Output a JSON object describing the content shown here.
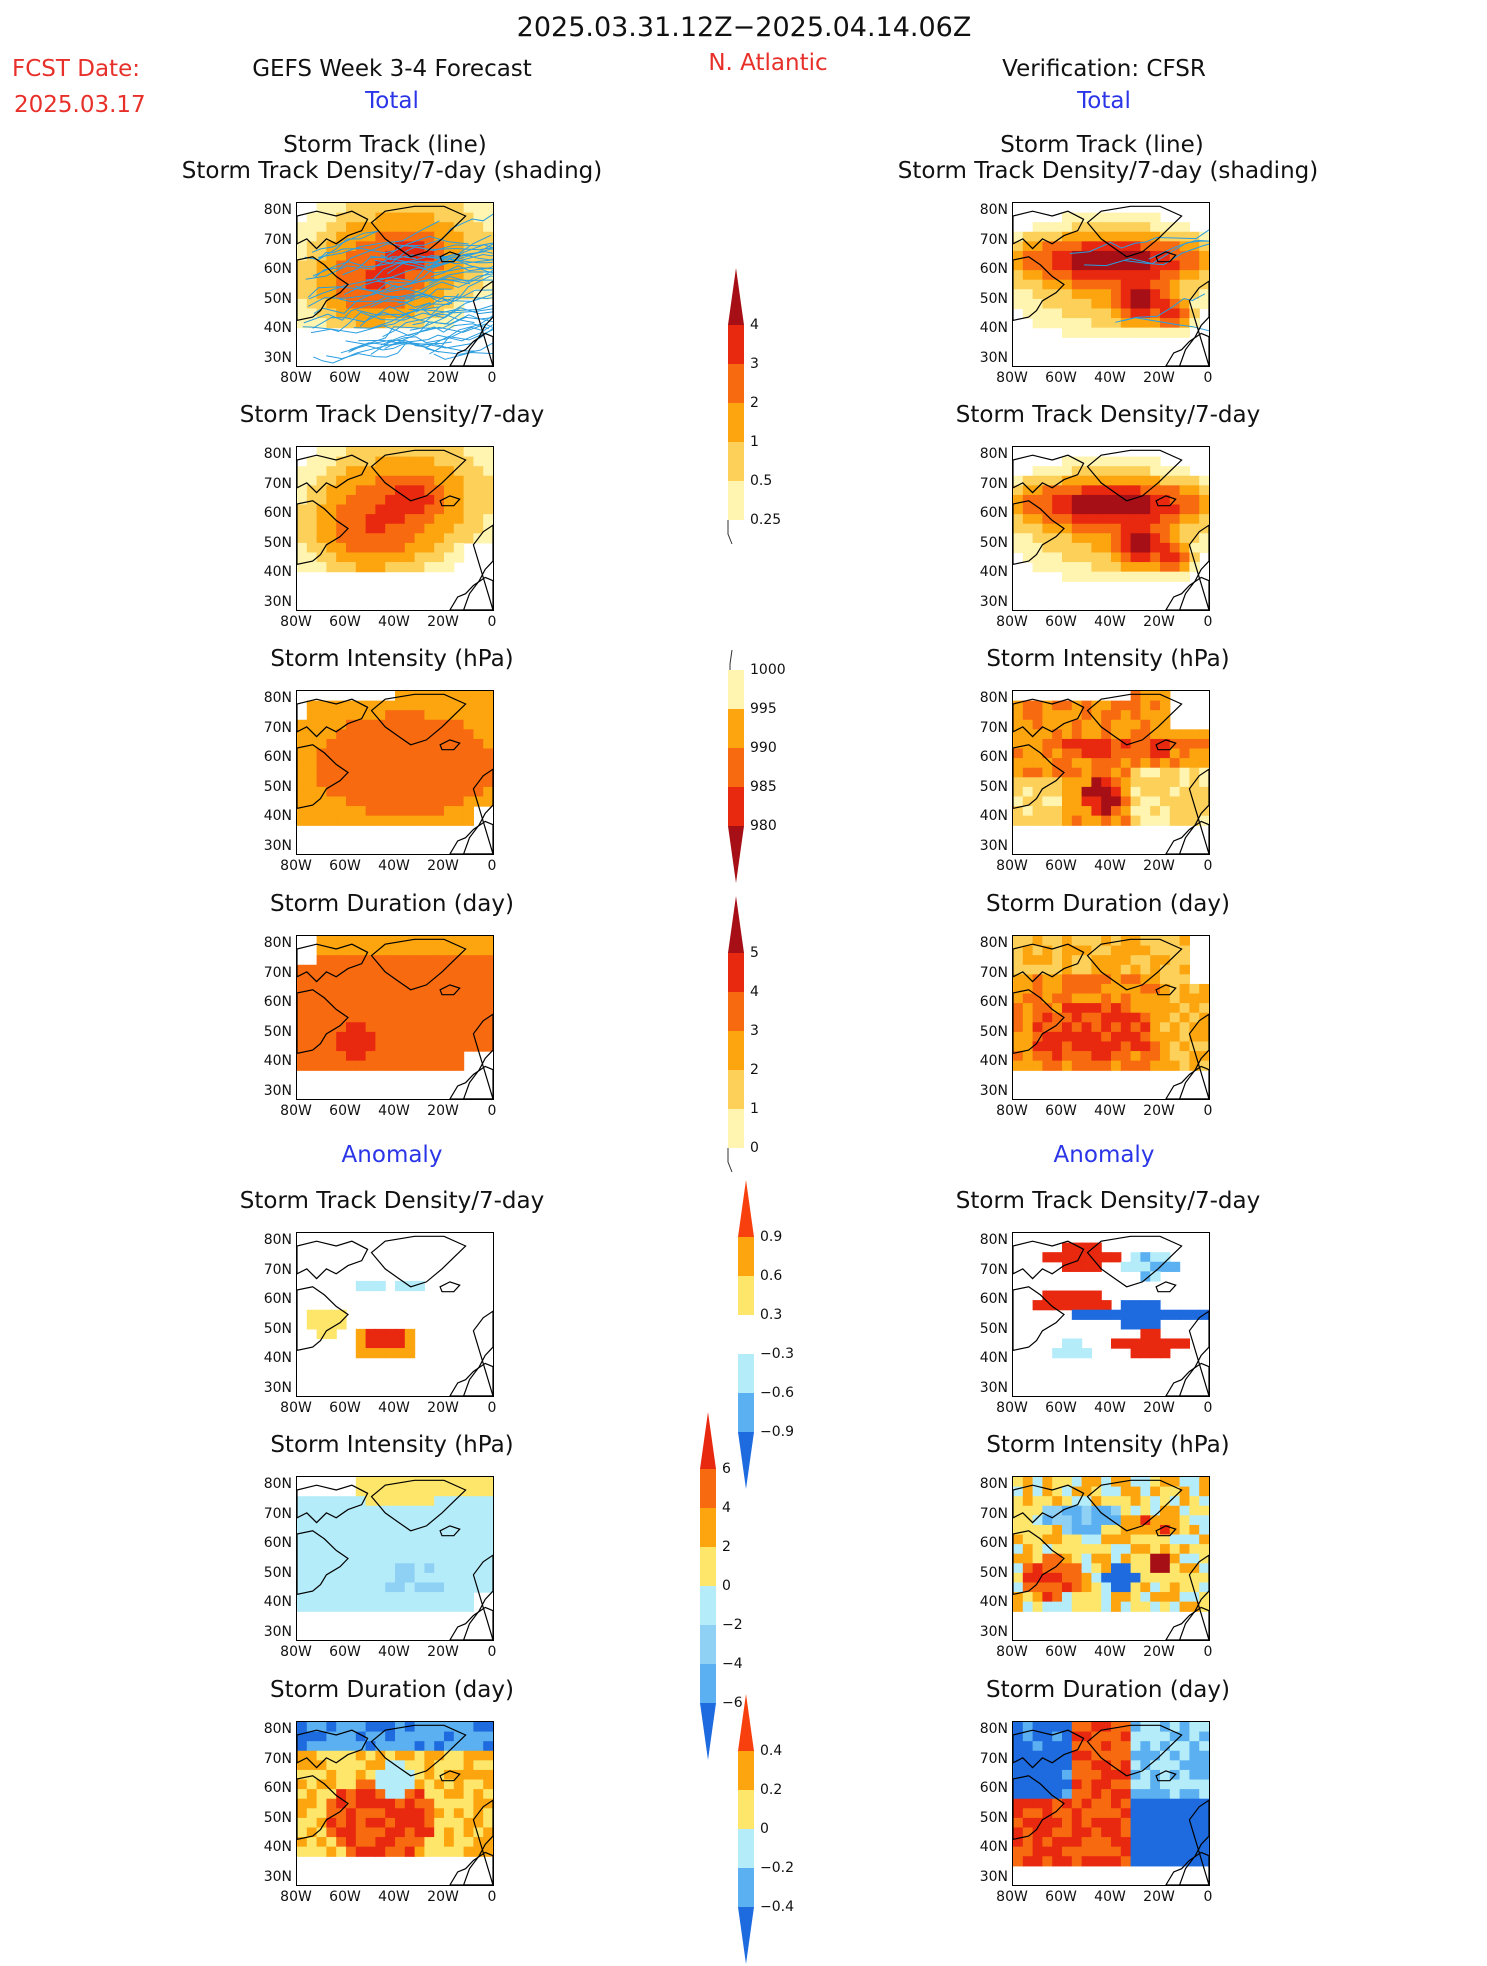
{
  "header": {
    "period": "2025.03.31.12Z−2025.04.14.06Z",
    "fcst_label": "FCST Date:",
    "fcst_date": "2025.03.17",
    "forecast_title": "GEFS Week 3-4 Forecast",
    "region": "N. Atlantic",
    "verification_title": "Verification: CFSR",
    "total_label": "Total",
    "anomaly_label": "Anomaly"
  },
  "panel_titles": {
    "track_line": "Storm Track (line)",
    "track_shading": "Storm Track Density/7-day (shading)",
    "density": "Storm Track Density/7-day",
    "intensity": "Storm Intensity (hPa)",
    "duration": "Storm Duration (day)"
  },
  "axes": {
    "lat_ticks": [
      "80N",
      "70N",
      "60N",
      "50N",
      "40N",
      "30N"
    ],
    "lon_ticks": [
      "80W",
      "60W",
      "40W",
      "20W",
      "0"
    ]
  },
  "colorbars": {
    "density": {
      "labels": [
        "4",
        "3",
        "2",
        "1",
        "0.5",
        "0.25"
      ],
      "colors": [
        "#a50f15",
        "#e8280f",
        "#f86a0f",
        "#fca50f",
        "#fdd05a",
        "#fff5b0"
      ]
    },
    "intensity": {
      "labels": [
        "1000",
        "995",
        "990",
        "985",
        "980"
      ],
      "colors": [
        "#fff5b0",
        "#fca50f",
        "#f86a0f",
        "#e8280f",
        "#a50f15"
      ]
    },
    "duration": {
      "labels": [
        "5",
        "4",
        "3",
        "2",
        "1",
        "0"
      ],
      "colors": [
        "#a50f15",
        "#e8280f",
        "#f86a0f",
        "#fca50f",
        "#fdd05a",
        "#fff5b0"
      ]
    },
    "density_anom": {
      "labels": [
        "0.9",
        "0.6",
        "0.3",
        "−0.3",
        "−0.6",
        "−0.9"
      ],
      "colors": [
        "#f8400f",
        "#fca50f",
        "#fde66a",
        "#ffffff",
        "#b5ecfa",
        "#5ab0f0",
        "#1e6be0"
      ]
    },
    "intensity_anom": {
      "labels": [
        "6",
        "4",
        "2",
        "0",
        "−2",
        "−4",
        "−6"
      ],
      "colors": [
        "#e8280f",
        "#f86a0f",
        "#fca50f",
        "#fde66a",
        "#b5ecfa",
        "#8fd0f5",
        "#5ab0f0",
        "#1e6be0"
      ]
    },
    "duration_anom": {
      "labels": [
        "0.4",
        "0.2",
        "0",
        "−0.2",
        "−0.4"
      ],
      "colors": [
        "#f8400f",
        "#fca50f",
        "#fde66a",
        "#b5ecfa",
        "#5ab0f0",
        "#1e6be0"
      ]
    }
  }
}
